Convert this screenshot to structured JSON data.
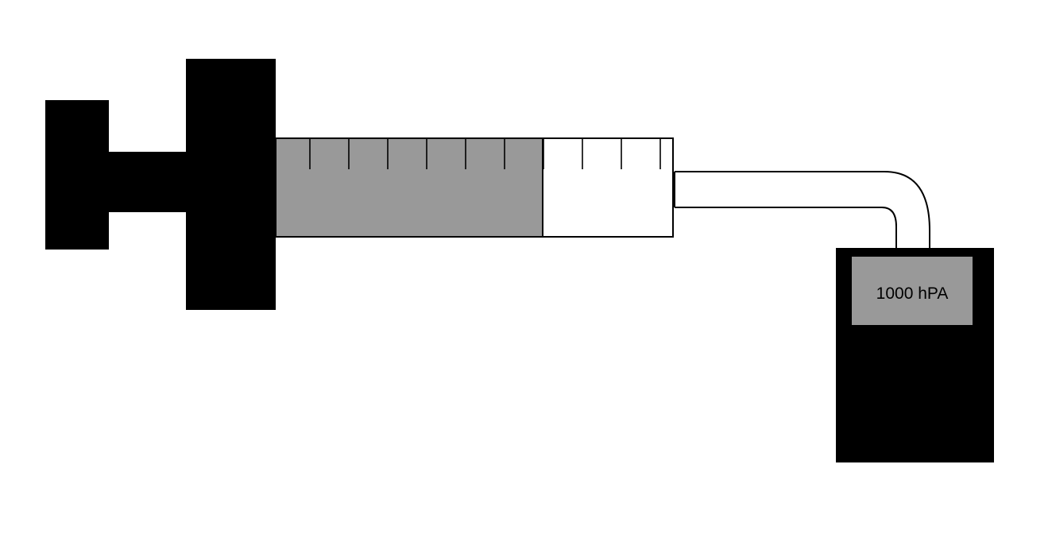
{
  "diagram": {
    "barrel": {
      "total_graduations": 10,
      "filled_graduations": 7,
      "fill_fraction": 0.67
    },
    "gauge": {
      "reading": "1000 hPA"
    }
  },
  "colors": {
    "plunger": "#000000",
    "compressed_gas": "#999999",
    "barrel_outline": "#000000",
    "gauge_body": "#000000",
    "gauge_display": "#999999",
    "background": "#ffffff"
  }
}
